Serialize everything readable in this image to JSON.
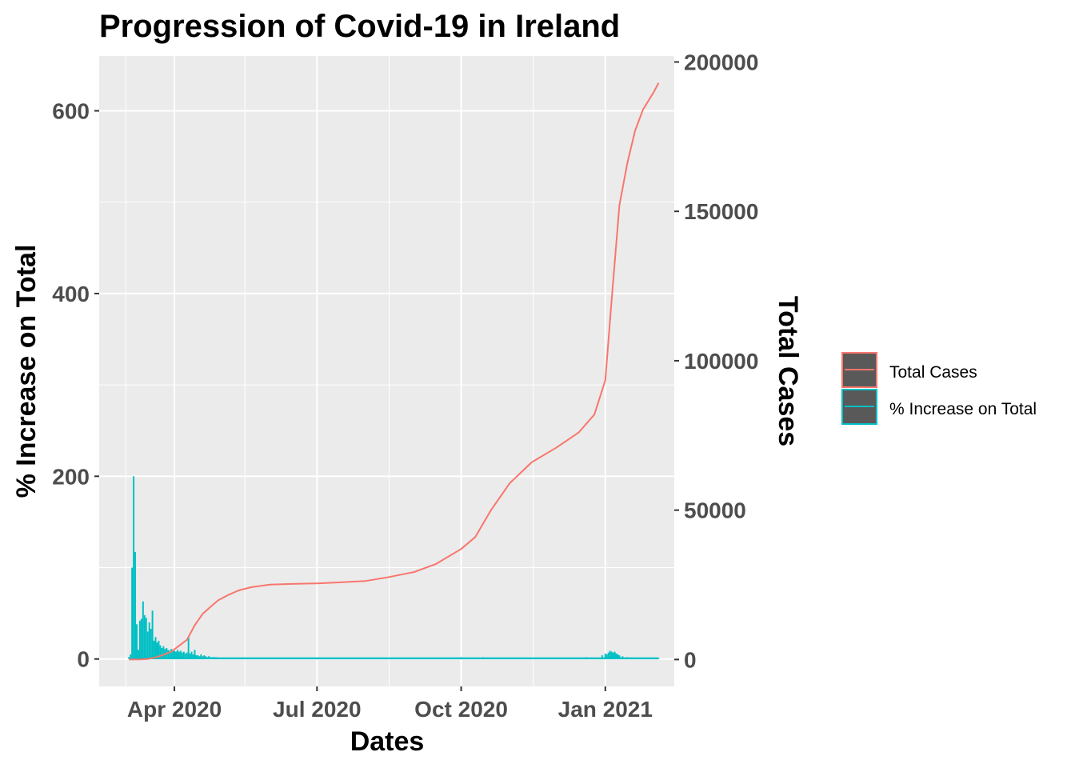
{
  "chart_data": {
    "type": "bar+line",
    "title": "Progression of Covid-19 in Ireland",
    "xlabel": "Dates",
    "ylabel_left": "% Increase on Total",
    "ylabel_right": "Total Cases",
    "x_range": [
      "2020-02-13",
      "2021-02-14"
    ],
    "x_ticks": [
      {
        "date": "2020-04-01",
        "label": "Apr 2020"
      },
      {
        "date": "2020-07-01",
        "label": "Jul 2020"
      },
      {
        "date": "2020-10-01",
        "label": "Oct 2020"
      },
      {
        "date": "2021-01-01",
        "label": "Jan 2021"
      }
    ],
    "x_minor_ticks": [
      "2020-03-01",
      "2020-05-16",
      "2020-08-16",
      "2020-11-16"
    ],
    "left_axis": {
      "range": [
        -30,
        660
      ],
      "ticks": [
        0,
        200,
        400,
        600
      ],
      "minor": [
        100,
        300,
        500
      ]
    },
    "right_axis": {
      "range": [
        -9000,
        202000
      ],
      "ticks": [
        0,
        50000,
        100000,
        150000,
        200000
      ]
    },
    "grid": true,
    "panel_background": "#ebebeb",
    "legend": {
      "position": "right",
      "items": [
        {
          "label": "Total Cases",
          "color": "#f8766d"
        },
        {
          "label": "% Increase on Total",
          "color": "#00bfc4"
        }
      ]
    },
    "series": [
      {
        "name": "Total Cases",
        "kind": "line",
        "axis": "right",
        "color": "#f8766d",
        "points": [
          [
            "2020-03-03",
            1
          ],
          [
            "2020-03-10",
            34
          ],
          [
            "2020-03-15",
            169
          ],
          [
            "2020-03-20",
            683
          ],
          [
            "2020-03-25",
            1564
          ],
          [
            "2020-03-30",
            2615
          ],
          [
            "2020-04-04",
            4604
          ],
          [
            "2020-04-09",
            6574
          ],
          [
            "2020-04-14",
            11479
          ],
          [
            "2020-04-19",
            15251
          ],
          [
            "2020-04-24",
            17607
          ],
          [
            "2020-04-29",
            19877
          ],
          [
            "2020-05-05",
            21506
          ],
          [
            "2020-05-12",
            23135
          ],
          [
            "2020-05-20",
            24200
          ],
          [
            "2020-06-01",
            25100
          ],
          [
            "2020-06-15",
            25300
          ],
          [
            "2020-07-01",
            25500
          ],
          [
            "2020-07-15",
            25800
          ],
          [
            "2020-08-01",
            26300
          ],
          [
            "2020-08-15",
            27500
          ],
          [
            "2020-09-01",
            29300
          ],
          [
            "2020-09-15",
            32000
          ],
          [
            "2020-10-01",
            37000
          ],
          [
            "2020-10-10",
            41000
          ],
          [
            "2020-10-20",
            50000
          ],
          [
            "2020-11-01",
            59000
          ],
          [
            "2020-11-15",
            66000
          ],
          [
            "2020-12-01",
            71000
          ],
          [
            "2020-12-15",
            76000
          ],
          [
            "2020-12-25",
            82000
          ],
          [
            "2021-01-01",
            93500
          ],
          [
            "2021-01-05",
            120000
          ],
          [
            "2021-01-10",
            152000
          ],
          [
            "2021-01-15",
            166000
          ],
          [
            "2021-01-20",
            177000
          ],
          [
            "2021-01-25",
            184000
          ],
          [
            "2021-02-01",
            190000
          ],
          [
            "2021-02-04",
            193000
          ]
        ]
      },
      {
        "name": "% Increase on Total",
        "kind": "bar",
        "axis": "left",
        "color": "#00bfc4",
        "points": [
          [
            "2020-03-03",
            2
          ],
          [
            "2020-03-04",
            5
          ],
          [
            "2020-03-05",
            100
          ],
          [
            "2020-03-06",
            200
          ],
          [
            "2020-03-07",
            117
          ],
          [
            "2020-03-08",
            38
          ],
          [
            "2020-03-09",
            10
          ],
          [
            "2020-03-10",
            42
          ],
          [
            "2020-03-11",
            44
          ],
          [
            "2020-03-12",
            63
          ],
          [
            "2020-03-13",
            48
          ],
          [
            "2020-03-14",
            45
          ],
          [
            "2020-03-15",
            30
          ],
          [
            "2020-03-16",
            40
          ],
          [
            "2020-03-17",
            33
          ],
          [
            "2020-03-18",
            53
          ],
          [
            "2020-03-19",
            20
          ],
          [
            "2020-03-20",
            24
          ],
          [
            "2020-03-21",
            18
          ],
          [
            "2020-03-22",
            20
          ],
          [
            "2020-03-23",
            15
          ],
          [
            "2020-03-24",
            12
          ],
          [
            "2020-03-25",
            14
          ],
          [
            "2020-03-26",
            11
          ],
          [
            "2020-03-27",
            12
          ],
          [
            "2020-03-28",
            10
          ],
          [
            "2020-03-29",
            9
          ],
          [
            "2020-03-30",
            11
          ],
          [
            "2020-03-31",
            10
          ],
          [
            "2020-04-01",
            9
          ],
          [
            "2020-04-02",
            8
          ],
          [
            "2020-04-03",
            10
          ],
          [
            "2020-04-04",
            8
          ],
          [
            "2020-04-05",
            9
          ],
          [
            "2020-04-06",
            7
          ],
          [
            "2020-04-07",
            8
          ],
          [
            "2020-04-08",
            6
          ],
          [
            "2020-04-09",
            7
          ],
          [
            "2020-04-10",
            24
          ],
          [
            "2020-04-11",
            6
          ],
          [
            "2020-04-12",
            8
          ],
          [
            "2020-04-13",
            5
          ],
          [
            "2020-04-14",
            10
          ],
          [
            "2020-04-15",
            4
          ],
          [
            "2020-04-16",
            4
          ],
          [
            "2020-04-17",
            3
          ],
          [
            "2020-04-18",
            5
          ],
          [
            "2020-04-19",
            3
          ],
          [
            "2020-04-20",
            4
          ],
          [
            "2020-04-21",
            3
          ],
          [
            "2020-04-22",
            2
          ],
          [
            "2020-04-23",
            3
          ],
          [
            "2020-04-24",
            2
          ],
          [
            "2020-04-25",
            2
          ],
          [
            "2020-04-26",
            2
          ],
          [
            "2020-04-27",
            2
          ],
          [
            "2020-04-28",
            2
          ],
          [
            "2020-04-29",
            1
          ],
          [
            "2020-04-30",
            1
          ],
          [
            "2020-05-01",
            1
          ],
          [
            "2020-09-15",
            1
          ],
          [
            "2020-10-01",
            2
          ],
          [
            "2020-10-15",
            2
          ],
          [
            "2020-11-01",
            1
          ],
          [
            "2020-12-01",
            1
          ],
          [
            "2020-12-20",
            2
          ],
          [
            "2020-12-30",
            4
          ],
          [
            "2021-01-01",
            6
          ],
          [
            "2021-01-02",
            5
          ],
          [
            "2021-01-03",
            7
          ],
          [
            "2021-01-04",
            9
          ],
          [
            "2021-01-05",
            8
          ],
          [
            "2021-01-06",
            7
          ],
          [
            "2021-01-07",
            8
          ],
          [
            "2021-01-08",
            6
          ],
          [
            "2021-01-09",
            5
          ],
          [
            "2021-01-10",
            4
          ],
          [
            "2021-01-12",
            3
          ],
          [
            "2021-01-15",
            2
          ],
          [
            "2021-01-20",
            1
          ],
          [
            "2021-01-25",
            1
          ],
          [
            "2021-02-01",
            1
          ],
          [
            "2021-02-04",
            1
          ]
        ]
      }
    ]
  }
}
